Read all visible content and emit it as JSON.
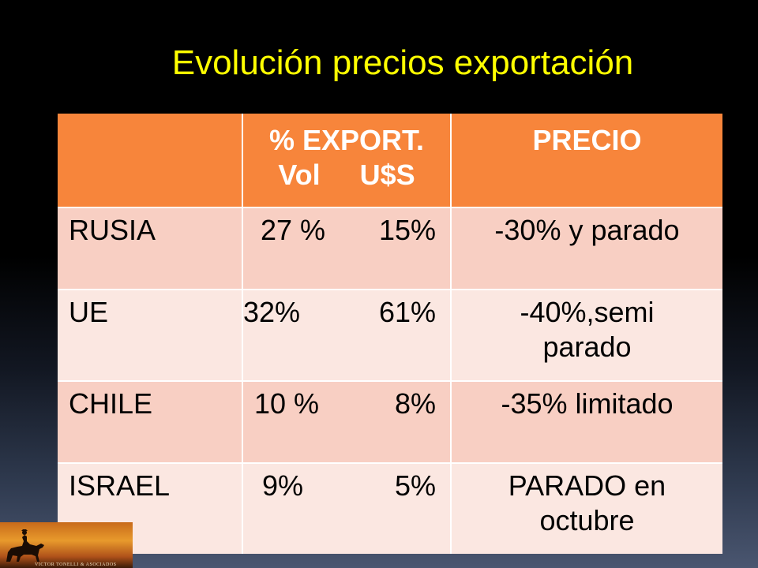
{
  "title": "Evolución precios exportación",
  "table": {
    "header": {
      "col1": "",
      "col2_line1": "% EXPORT.",
      "col2_line2": "Vol     U$S",
      "col3": "PRECIO"
    },
    "rows": [
      {
        "country": "RUSIA",
        "vol": "27 %",
        "usd": "15%",
        "price": "-30% y parado"
      },
      {
        "country": "UE",
        "vol": "32%",
        "usd": "61%",
        "price_line1": "-40%,semi",
        "price_line2": "parado"
      },
      {
        "country": "CHILE",
        "vol": "10 %",
        "usd": "8%",
        "price": "-35% limitado"
      },
      {
        "country": "ISRAEL",
        "vol": "9%",
        "usd": "5%",
        "price_line1": "PARADO en",
        "price_line2": "octubre"
      }
    ]
  },
  "logo": {
    "text": "VICTOR TONELLI & ASOCIADOS",
    "icon": "horse-rider-silhouette-icon"
  }
}
